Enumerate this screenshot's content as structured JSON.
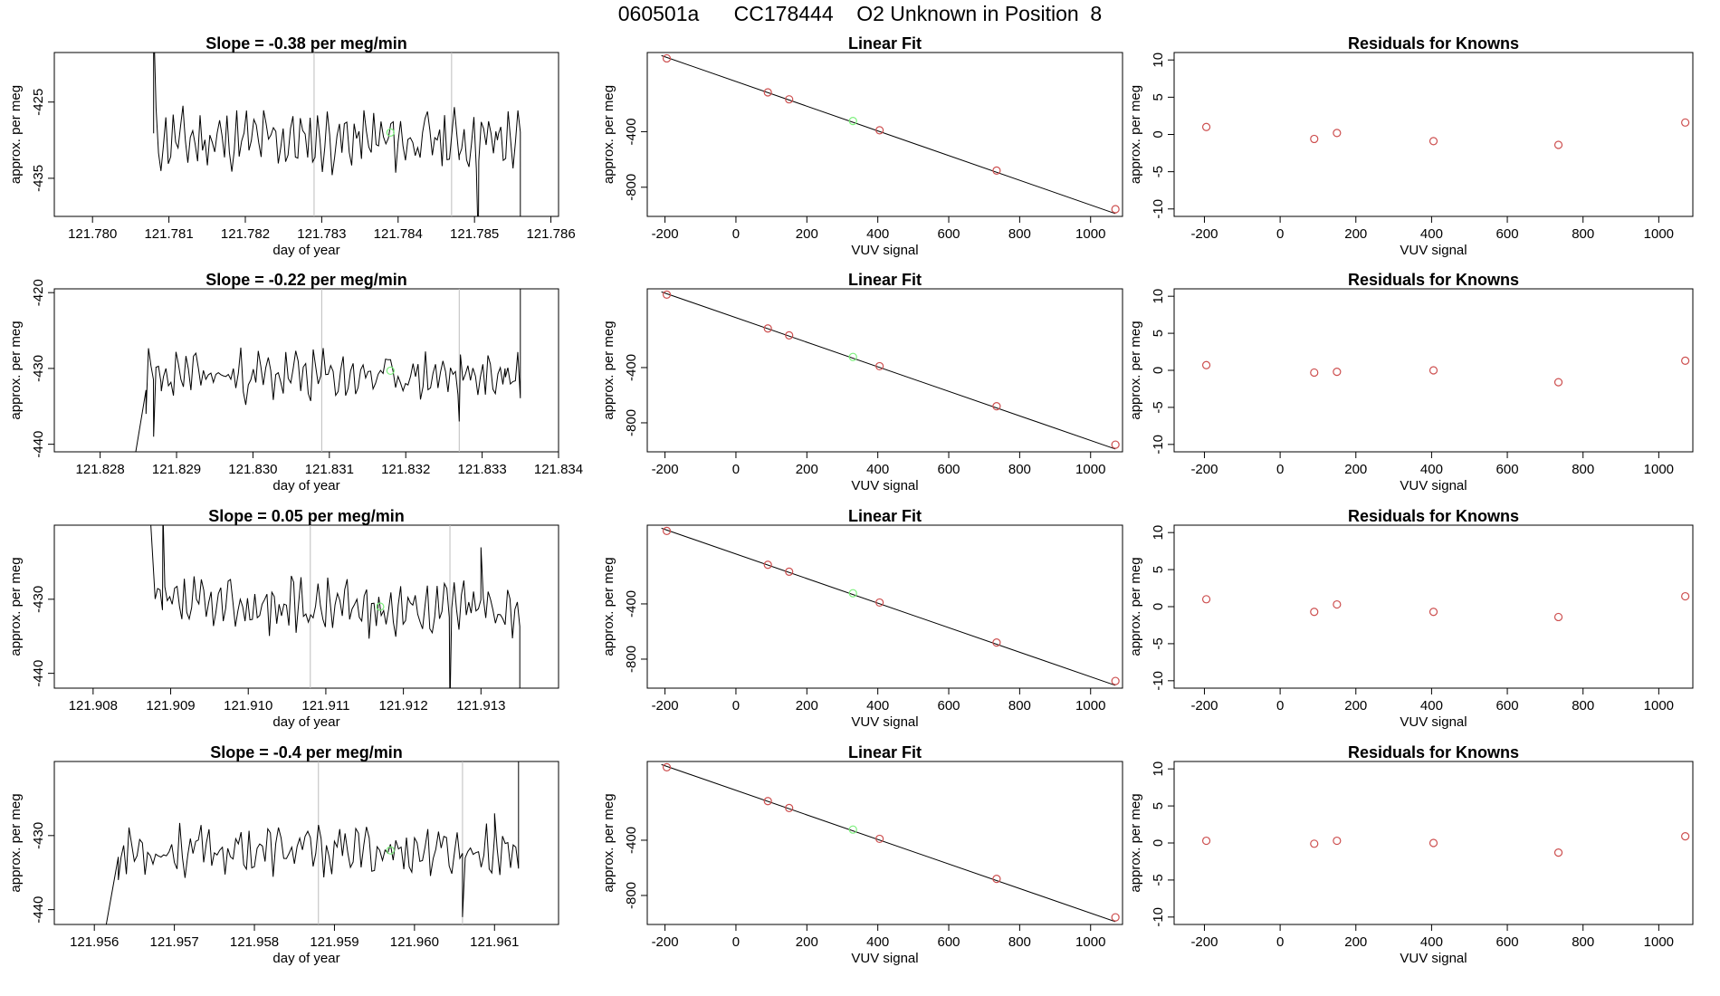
{
  "header": {
    "run_id": "060501a",
    "cylinder": "CC178444",
    "description": "O2 Unknown in Position  8"
  },
  "colors": {
    "axis": "#000000",
    "series_line": "#000000",
    "vline": "#bdbdbd",
    "known_point": "#cd4f4f",
    "unknown_point": "#7cf07c",
    "background": "#ffffff"
  },
  "chart_data": [
    {
      "type": "line",
      "row": 0,
      "panel": "timeseries",
      "title": "Slope =  -0.38  per meg/min",
      "xlabel": "day of year",
      "ylabel": "approx. per meg",
      "xlim": [
        121.7795,
        121.7861
      ],
      "ylim": [
        -440.0,
        -418.5
      ],
      "xticks": [
        "121.780",
        "121.781",
        "121.782",
        "121.783",
        "121.784",
        "121.785",
        "121.786"
      ],
      "yticks": [
        "-425",
        "-435"
      ],
      "vlines": [
        121.7829,
        121.7847
      ],
      "marker": {
        "x": 121.7839,
        "y": -429.0
      },
      "series_start": 121.7808,
      "series_end": 121.7856,
      "baseline": -430.0,
      "noise": 3.0,
      "seed": 11,
      "edges": [
        [
          121.7808,
          -414.0
        ],
        [
          121.7812,
          -428.0
        ],
        [
          121.7848,
          -432.0
        ],
        [
          121.78505,
          -444.0
        ],
        [
          121.7853,
          -430.0
        ],
        [
          121.7856,
          -445.0
        ]
      ]
    },
    {
      "type": "scatter",
      "row": 0,
      "panel": "fit",
      "title": "Linear Fit",
      "xlabel": "VUV signal",
      "ylabel": "approx. per meg",
      "xlim": [
        -250,
        1090
      ],
      "ylim": [
        -1010,
        170
      ],
      "xticks": [
        -200,
        0,
        200,
        400,
        600,
        800,
        1000
      ],
      "yticks": [
        -400,
        -800
      ],
      "fit_line": [
        [
          -210,
          148
        ],
        [
          1070,
          -990
        ]
      ],
      "known": [
        [
          -195,
          128
        ],
        [
          90,
          -117
        ],
        [
          150,
          -167
        ],
        [
          405,
          -390
        ],
        [
          735,
          -680
        ],
        [
          1070,
          -958
        ]
      ],
      "unknown": [
        [
          330,
          -323
        ]
      ]
    },
    {
      "type": "scatter",
      "row": 0,
      "panel": "residuals",
      "title": "Residuals for Knowns",
      "xlabel": "VUV signal",
      "ylabel": "approx. per meg",
      "xlim": [
        -280,
        1090
      ],
      "ylim": [
        -11,
        11
      ],
      "xticks": [
        -200,
        0,
        200,
        400,
        600,
        800,
        1000
      ],
      "yticks": [
        10,
        5,
        0,
        -5,
        -10
      ],
      "known": [
        [
          -195,
          1.0
        ],
        [
          90,
          -0.6
        ],
        [
          150,
          0.2
        ],
        [
          405,
          -0.9
        ],
        [
          735,
          -1.4
        ],
        [
          1070,
          1.6
        ]
      ]
    },
    {
      "type": "line",
      "row": 1,
      "panel": "timeseries",
      "title": "Slope =  -0.22  per meg/min",
      "xlabel": "day of year",
      "ylabel": "approx. per meg",
      "xlim": [
        121.8274,
        121.834
      ],
      "ylim": [
        -441.0,
        -419.5
      ],
      "xticks": [
        "121.828",
        "121.829",
        "121.830",
        "121.831",
        "121.832",
        "121.833",
        "121.834"
      ],
      "yticks": [
        "-420",
        "-430",
        "-440"
      ],
      "vlines": [
        121.8309,
        121.8327
      ],
      "marker": {
        "x": 121.8318,
        "y": -430.3
      },
      "series_start": 121.8286,
      "series_end": 121.8335,
      "baseline": -431.0,
      "noise": 2.5,
      "seed": 23,
      "edges": [
        [
          121.8284,
          -445.0
        ],
        [
          121.8286,
          -436.0
        ],
        [
          121.8287,
          -439.0
        ],
        [
          121.8288,
          -433.0
        ],
        [
          121.8327,
          -437.0
        ],
        [
          121.8333,
          -430.0
        ],
        [
          121.8335,
          -417.0
        ]
      ]
    },
    {
      "type": "scatter",
      "row": 1,
      "panel": "fit",
      "title": "Linear Fit",
      "xlabel": "VUV signal",
      "ylabel": "approx. per meg",
      "xlim": [
        -250,
        1090
      ],
      "ylim": [
        -1010,
        170
      ],
      "xticks": [
        -200,
        0,
        200,
        400,
        600,
        800,
        1000
      ],
      "yticks": [
        -400,
        -800
      ],
      "fit_line": [
        [
          -210,
          148
        ],
        [
          1070,
          -990
        ]
      ],
      "known": [
        [
          -195,
          128
        ],
        [
          90,
          -117
        ],
        [
          150,
          -167
        ],
        [
          405,
          -390
        ],
        [
          735,
          -680
        ],
        [
          1070,
          -958
        ]
      ],
      "unknown": [
        [
          330,
          -323
        ]
      ]
    },
    {
      "type": "scatter",
      "row": 1,
      "panel": "residuals",
      "title": "Residuals for Knowns",
      "xlabel": "VUV signal",
      "ylabel": "approx. per meg",
      "xlim": [
        -280,
        1090
      ],
      "ylim": [
        -11,
        11
      ],
      "xticks": [
        -200,
        0,
        200,
        400,
        600,
        800,
        1000
      ],
      "yticks": [
        10,
        5,
        0,
        -5,
        -10
      ],
      "known": [
        [
          -195,
          0.7
        ],
        [
          90,
          -0.3
        ],
        [
          150,
          -0.2
        ],
        [
          405,
          0.0
        ],
        [
          735,
          -1.6
        ],
        [
          1070,
          1.3
        ]
      ]
    },
    {
      "type": "line",
      "row": 2,
      "panel": "timeseries",
      "title": "Slope =  0.05  per meg/min",
      "xlabel": "day of year",
      "ylabel": "approx. per meg",
      "xlim": [
        121.9075,
        121.914
      ],
      "ylim": [
        -442.0,
        -420.0
      ],
      "xticks": [
        "121.908",
        "121.909",
        "121.910",
        "121.911",
        "121.912",
        "121.913"
      ],
      "yticks": [
        "-430",
        "-440"
      ],
      "vlines": [
        121.9108,
        121.9126
      ],
      "marker": {
        "x": 121.9117,
        "y": -431.0
      },
      "series_start": 121.9088,
      "series_end": 121.9135,
      "baseline": -431.0,
      "noise": 2.8,
      "seed": 37,
      "edges": [
        [
          121.9087,
          -412.0
        ],
        [
          121.9089,
          -418.0
        ],
        [
          121.9126,
          -445.0
        ],
        [
          121.913,
          -423.0
        ],
        [
          121.9135,
          -446.0
        ]
      ]
    },
    {
      "type": "scatter",
      "row": 2,
      "panel": "fit",
      "title": "Linear Fit",
      "xlabel": "VUV signal",
      "ylabel": "approx. per meg",
      "xlim": [
        -250,
        1090
      ],
      "ylim": [
        -1010,
        170
      ],
      "xticks": [
        -200,
        0,
        200,
        400,
        600,
        800,
        1000
      ],
      "yticks": [
        -400,
        -800
      ],
      "fit_line": [
        [
          -210,
          148
        ],
        [
          1070,
          -990
        ]
      ],
      "known": [
        [
          -195,
          128
        ],
        [
          90,
          -117
        ],
        [
          150,
          -167
        ],
        [
          405,
          -390
        ],
        [
          735,
          -680
        ],
        [
          1070,
          -958
        ]
      ],
      "unknown": [
        [
          330,
          -323
        ]
      ]
    },
    {
      "type": "scatter",
      "row": 2,
      "panel": "residuals",
      "title": "Residuals for Knowns",
      "xlabel": "VUV signal",
      "ylabel": "approx. per meg",
      "xlim": [
        -280,
        1090
      ],
      "ylim": [
        -11,
        11
      ],
      "xticks": [
        -200,
        0,
        200,
        400,
        600,
        800,
        1000
      ],
      "yticks": [
        10,
        5,
        0,
        -5,
        -10
      ],
      "known": [
        [
          -195,
          1.0
        ],
        [
          90,
          -0.7
        ],
        [
          150,
          0.3
        ],
        [
          405,
          -0.7
        ],
        [
          735,
          -1.4
        ],
        [
          1070,
          1.4
        ]
      ]
    },
    {
      "type": "line",
      "row": 3,
      "panel": "timeseries",
      "title": "Slope =  -0.4  per meg/min",
      "xlabel": "day of year",
      "ylabel": "approx. per meg",
      "xlim": [
        121.9555,
        121.9618
      ],
      "ylim": [
        -442.0,
        -420.0
      ],
      "xticks": [
        "121.956",
        "121.957",
        "121.958",
        "121.959",
        "121.960",
        "121.961"
      ],
      "yticks": [
        "-430",
        "-440"
      ],
      "vlines": [
        121.9588,
        121.9606
      ],
      "marker": {
        "x": 121.9597,
        "y": -432.0
      },
      "series_start": 121.9563,
      "series_end": 121.9613,
      "baseline": -432.0,
      "noise": 2.5,
      "seed": 53,
      "edges": [
        [
          121.9561,
          -445.0
        ],
        [
          121.9563,
          -436.0
        ],
        [
          121.9606,
          -441.0
        ],
        [
          121.961,
          -427.0
        ],
        [
          121.9613,
          -418.0
        ]
      ]
    },
    {
      "type": "scatter",
      "row": 3,
      "panel": "fit",
      "title": "Linear Fit",
      "xlabel": "VUV signal",
      "ylabel": "approx. per meg",
      "xlim": [
        -250,
        1090
      ],
      "ylim": [
        -1010,
        170
      ],
      "xticks": [
        -200,
        0,
        200,
        400,
        600,
        800,
        1000
      ],
      "yticks": [
        -400,
        -800
      ],
      "fit_line": [
        [
          -210,
          148
        ],
        [
          1070,
          -990
        ]
      ],
      "known": [
        [
          -195,
          128
        ],
        [
          90,
          -117
        ],
        [
          150,
          -167
        ],
        [
          405,
          -390
        ],
        [
          735,
          -680
        ],
        [
          1070,
          -958
        ]
      ],
      "unknown": [
        [
          330,
          -323
        ]
      ]
    },
    {
      "type": "scatter",
      "row": 3,
      "panel": "residuals",
      "title": "Residuals for Knowns",
      "xlabel": "VUV signal",
      "ylabel": "approx. per meg",
      "xlim": [
        -280,
        1090
      ],
      "ylim": [
        -11,
        11
      ],
      "xticks": [
        -200,
        0,
        200,
        400,
        600,
        800,
        1000
      ],
      "yticks": [
        10,
        5,
        0,
        -5,
        -10
      ],
      "known": [
        [
          -195,
          0.3
        ],
        [
          90,
          -0.1
        ],
        [
          150,
          0.3
        ],
        [
          405,
          0.0
        ],
        [
          735,
          -1.3
        ],
        [
          1070,
          0.9
        ]
      ]
    }
  ]
}
